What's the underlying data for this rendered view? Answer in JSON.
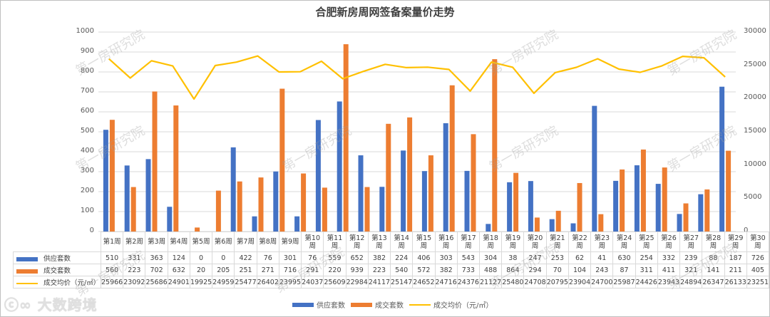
{
  "title": "合肥新房周网签备案量价走势",
  "watermark": "第一房研究院",
  "logo": "大数跨境",
  "colors": {
    "supply": "#4472c4",
    "deals": "#ed7d31",
    "price": "#ffc000",
    "grid": "#d9d9d9"
  },
  "left_axis_ticks": [
    "1000",
    "900",
    "800",
    "700",
    "600",
    "500",
    "400",
    "300",
    "200",
    "100",
    "0"
  ],
  "right_axis_ticks": [
    "30000",
    "25000",
    "20000",
    "15000",
    "10000",
    "5000",
    "0"
  ],
  "legend": {
    "supply": "供应套数",
    "deals": "成交套数",
    "price": "成交均价（元/㎡）"
  },
  "chart_data": {
    "type": "bar",
    "title": "合肥新房周网签备案量价走势",
    "categories": [
      "第1周",
      "第2周",
      "第3周",
      "第4周",
      "第5周",
      "第6周",
      "第7周",
      "第8周",
      "第9周",
      "第10周",
      "第11周",
      "第12周",
      "第13周",
      "第14周",
      "第15周",
      "第16周",
      "第17周",
      "第18周",
      "第19周",
      "第20周",
      "第21周",
      "第22周",
      "第23周",
      "第24周",
      "第25周",
      "第26周",
      "第27周",
      "第28周",
      "第29周",
      "第30周"
    ],
    "series": [
      {
        "name": "供应套数",
        "type": "bar",
        "axis": "left",
        "values": [
          510,
          331,
          363,
          124,
          0,
          0,
          422,
          76,
          301,
          76,
          559,
          652,
          382,
          224,
          406,
          303,
          543,
          304,
          38,
          247,
          253,
          62,
          41,
          630,
          254,
          332,
          239,
          88,
          187,
          726
        ]
      },
      {
        "name": "成交套数",
        "type": "bar",
        "axis": "left",
        "values": [
          560,
          223,
          702,
          632,
          20,
          205,
          251,
          271,
          716,
          291,
          220,
          939,
          223,
          540,
          572,
          382,
          733,
          488,
          864,
          294,
          70,
          104,
          243,
          87,
          311,
          411,
          321,
          141,
          211,
          405
        ]
      },
      {
        "name": "成交均价（元/㎡）",
        "type": "line",
        "axis": "right",
        "values": [
          25966,
          23092,
          25686,
          24901,
          19925,
          24959,
          25477,
          26402,
          23995,
          24037,
          25609,
          22984,
          24117,
          25147,
          24652,
          24716,
          24376,
          21127,
          25480,
          24708,
          20795,
          23904,
          24700,
          25987,
          24426,
          23943,
          24894,
          26347,
          26133,
          23251
        ]
      }
    ],
    "ylim_left": [
      0,
      1000
    ],
    "ylim_right": [
      0,
      30000
    ],
    "grid": true,
    "legend_position": "bottom",
    "data_table": true
  }
}
